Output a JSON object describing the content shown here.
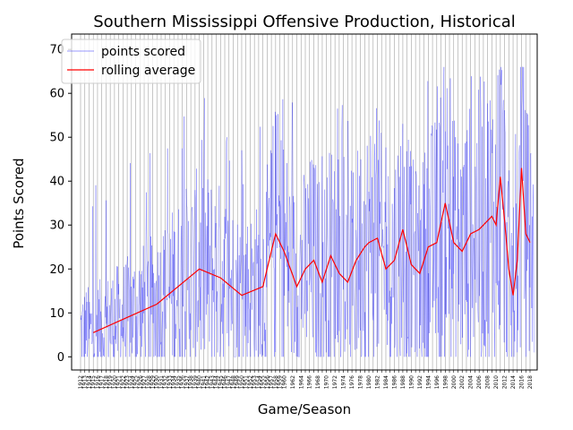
{
  "chart_data": {
    "type": "line",
    "title": "Southern Mississippi Offensive Production, Historical",
    "xlabel": "Game/Season",
    "ylabel": "Points Scored",
    "ylim": [
      -3,
      73.5
    ],
    "yticks": [
      0,
      10,
      20,
      30,
      40,
      50,
      60,
      70
    ],
    "grid": "vertical lines at each season",
    "legend_position": "top-left",
    "season_first": 1912,
    "season_last": 2018,
    "seasons_labeled_from": 1960,
    "seasons_label_step": 2,
    "series": [
      {
        "name": "points scored",
        "color": "#0000ff",
        "style": "thin line, low opacity",
        "x_range": [
          1912,
          2018
        ],
        "y_range": [
          0,
          66
        ]
      },
      {
        "name": "rolling average",
        "color": "#ff0000",
        "style": "solid line",
        "x": [
          1915,
          1930,
          1940,
          1945,
          1950,
          1955,
          1958,
          1960,
          1963,
          1965,
          1967,
          1969,
          1971,
          1973,
          1975,
          1977,
          1979,
          1980,
          1982,
          1984,
          1986,
          1988,
          1990,
          1992,
          1994,
          1996,
          1998,
          2000,
          2002,
          2004,
          2006,
          2008,
          2009,
          2010,
          2011,
          2012,
          2013,
          2014,
          2015,
          2016,
          2017,
          2018
        ],
        "y": [
          5.5,
          12,
          20,
          18,
          14,
          16,
          28,
          24,
          16,
          20,
          22,
          17,
          23,
          19,
          17,
          22,
          25,
          26,
          27,
          20,
          22,
          29,
          21,
          19,
          25,
          26,
          35,
          26,
          24,
          28,
          29,
          31,
          32,
          30,
          41,
          31,
          20,
          14,
          22,
          43,
          28,
          26
        ]
      }
    ]
  }
}
